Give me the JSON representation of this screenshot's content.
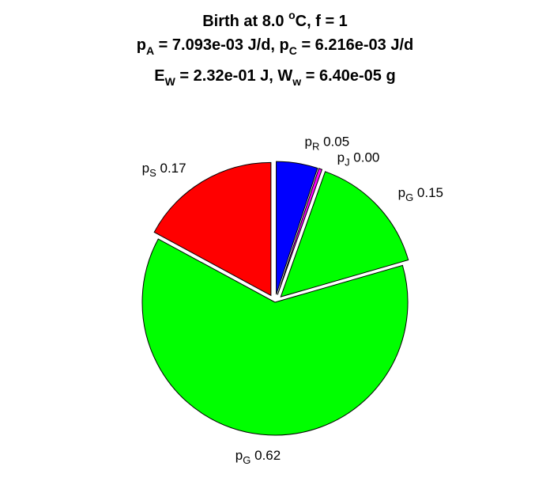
{
  "chart_data": {
    "type": "pie",
    "title": {
      "line1": "Birth at 8.0 °C, f = 1",
      "line2": "p_A = 7.093e-03 J/d, p_C = 6.216e-03 J/d",
      "line3": "E_W = 2.32e-01 J, W_w = 6.40e-05 g"
    },
    "title_parts": {
      "line1_pre": "Birth at 8.0 ",
      "line1_sup": "o",
      "line1_post": "C, f = 1",
      "pa_main": "p",
      "pa_sub": "A",
      "pa_val": " = 7.093e-03 J/d, ",
      "pc_main": "p",
      "pc_sub": "C",
      "pc_val": " = 6.216e-03 J/d",
      "ew_main": "E",
      "ew_sub": "W",
      "ew_val": " = 2.32e-01 J, ",
      "ww_main": "W",
      "ww_sub": "w",
      "ww_val": " = 6.40e-05 g"
    },
    "start_angle_deg": 0,
    "direction": "clockwise",
    "slices": [
      {
        "symbol": "p",
        "sub": "R",
        "value": 0.05,
        "label": "0.05",
        "color": "#0000ff",
        "exploded": true
      },
      {
        "symbol": "p",
        "sub": "J",
        "value": 0.004,
        "label": "0.00",
        "color": "#ff00ff",
        "exploded": true
      },
      {
        "symbol": "p",
        "sub": "G",
        "value": 0.15,
        "label": "0.15",
        "color": "#00ff00",
        "exploded": true
      },
      {
        "symbol": "p",
        "sub": "G",
        "value": 0.62,
        "label": "0.62",
        "color": "#00ff00",
        "exploded": false
      },
      {
        "symbol": "p",
        "sub": "S",
        "value": 0.17,
        "label": "0.17",
        "color": "#ff0000",
        "exploded": true
      }
    ]
  }
}
